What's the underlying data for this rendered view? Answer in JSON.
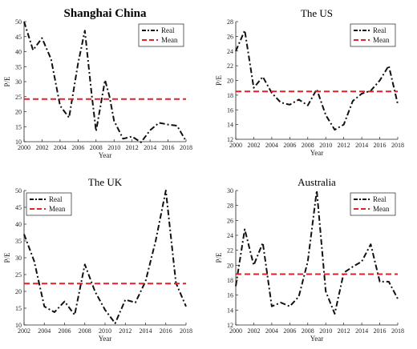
{
  "colors": {
    "real": "#111111",
    "mean": "#e0202a",
    "axis": "#222222",
    "background": "#ffffff"
  },
  "chart_data": [
    {
      "type": "line",
      "title": "Shanghai China",
      "xlabel": "Year",
      "ylabel": "P/E",
      "xlim": [
        2000,
        2018
      ],
      "ylim": [
        10,
        50
      ],
      "xticks": [
        2000,
        2002,
        2004,
        2006,
        2008,
        2010,
        2012,
        2014,
        2016,
        2018
      ],
      "yticks": [
        10,
        15,
        20,
        25,
        30,
        35,
        40,
        45,
        50
      ],
      "grid": false,
      "legend_position": "top-right",
      "series": [
        {
          "name": "Real",
          "style": "dash-dot",
          "x": [
            2000,
            2001,
            2002,
            2003,
            2004,
            2004.5,
            2005,
            2006,
            2006.75,
            2007.5,
            2008,
            2009,
            2009.5,
            2010,
            2011,
            2012,
            2013,
            2014,
            2015,
            2016,
            2017,
            2018
          ],
          "y": [
            50,
            40.5,
            44.5,
            37.5,
            22,
            20,
            18,
            36,
            47,
            26,
            13.5,
            30.5,
            25,
            17,
            11,
            11.7,
            9.8,
            13.8,
            16.3,
            15.7,
            15.3,
            10.2
          ]
        },
        {
          "name": "Mean",
          "style": "dashed",
          "x": [
            2000,
            2018
          ],
          "y": [
            24.2,
            24.2
          ]
        }
      ]
    },
    {
      "type": "line",
      "title": "The US",
      "xlabel": "Year",
      "ylabel": "P/E",
      "xlim": [
        2000,
        2018
      ],
      "ylim": [
        12,
        28
      ],
      "xticks": [
        2000,
        2002,
        2004,
        2006,
        2008,
        2010,
        2012,
        2014,
        2016,
        2018
      ],
      "yticks": [
        12,
        14,
        16,
        18,
        20,
        22,
        24,
        26,
        28
      ],
      "grid": false,
      "legend_position": "top-right",
      "series": [
        {
          "name": "Real",
          "style": "dash-dot",
          "x": [
            2000,
            2001,
            2002,
            2003,
            2004,
            2005,
            2006,
            2007,
            2008,
            2009,
            2010,
            2011,
            2012,
            2013,
            2014,
            2015,
            2016,
            2017,
            2018
          ],
          "y": [
            24,
            26.8,
            19,
            20.5,
            18.3,
            17,
            16.7,
            17.4,
            16.6,
            18.8,
            15.3,
            13.3,
            14,
            17.2,
            18.2,
            18.6,
            20,
            22,
            16.8
          ]
        },
        {
          "name": "Mean",
          "style": "dashed",
          "x": [
            2000,
            2018
          ],
          "y": [
            18.5,
            18.5
          ]
        }
      ]
    },
    {
      "type": "line",
      "title": "The UK",
      "xlabel": "Year",
      "ylabel": "P/E",
      "xlim": [
        2002,
        2018
      ],
      "ylim": [
        10,
        50
      ],
      "xticks": [
        2002,
        2004,
        2006,
        2008,
        2010,
        2012,
        2014,
        2016,
        2018
      ],
      "yticks": [
        10,
        15,
        20,
        25,
        30,
        35,
        40,
        45,
        50
      ],
      "grid": false,
      "legend_position": "top-left",
      "series": [
        {
          "name": "Real",
          "style": "dash-dot",
          "x": [
            2002,
            2003,
            2004,
            2005,
            2006,
            2007,
            2008,
            2009,
            2010,
            2011,
            2012,
            2013,
            2014,
            2015,
            2016,
            2017,
            2018
          ],
          "y": [
            37,
            29,
            15.5,
            13.8,
            17,
            13,
            28,
            20,
            14.5,
            10.5,
            17.5,
            16.7,
            23,
            35,
            50,
            22.5,
            15.5
          ]
        },
        {
          "name": "Mean",
          "style": "dashed",
          "x": [
            2002,
            2018
          ],
          "y": [
            22.3,
            22.3
          ]
        }
      ]
    },
    {
      "type": "line",
      "title": "Australia",
      "xlabel": "Year",
      "ylabel": "P/E",
      "xlim": [
        2000,
        2018
      ],
      "ylim": [
        12,
        30
      ],
      "xticks": [
        2000,
        2002,
        2004,
        2006,
        2008,
        2010,
        2012,
        2014,
        2016,
        2018
      ],
      "yticks": [
        12,
        14,
        16,
        18,
        20,
        22,
        24,
        26,
        28,
        30
      ],
      "grid": false,
      "legend_position": "top-right",
      "series": [
        {
          "name": "Real",
          "style": "dash-dot",
          "x": [
            2000,
            2001,
            2002,
            2003,
            2004,
            2005,
            2006,
            2007,
            2008,
            2009,
            2010,
            2011,
            2012,
            2013,
            2014,
            2015,
            2016,
            2017,
            2018
          ],
          "y": [
            17.2,
            24.8,
            20,
            23,
            14.5,
            15,
            14.5,
            15.8,
            20.5,
            30,
            16.5,
            13.5,
            19,
            19.8,
            20.5,
            22.8,
            17.8,
            17.8,
            15.5
          ]
        },
        {
          "name": "Mean",
          "style": "dashed",
          "x": [
            2000,
            2018
          ],
          "y": [
            18.8,
            18.8
          ]
        }
      ]
    }
  ]
}
